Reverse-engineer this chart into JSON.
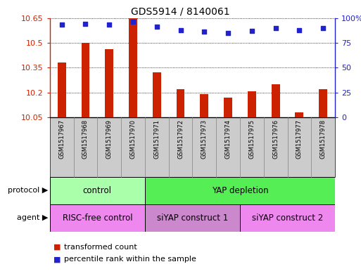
{
  "title": "GDS5914 / 8140061",
  "samples": [
    "GSM1517967",
    "GSM1517968",
    "GSM1517969",
    "GSM1517970",
    "GSM1517971",
    "GSM1517972",
    "GSM1517973",
    "GSM1517974",
    "GSM1517975",
    "GSM1517976",
    "GSM1517977",
    "GSM1517978"
  ],
  "transformed_counts": [
    10.38,
    10.5,
    10.46,
    10.65,
    10.32,
    10.22,
    10.19,
    10.17,
    10.205,
    10.25,
    10.08,
    10.22
  ],
  "percentile_ranks": [
    93,
    94,
    93,
    96,
    91,
    88,
    86,
    85,
    87,
    90,
    88,
    90
  ],
  "ymin": 10.05,
  "ymax": 10.65,
  "yticks": [
    10.05,
    10.2,
    10.35,
    10.5,
    10.65
  ],
  "yticklabels": [
    "10.05",
    "10.2",
    "10.35",
    "10.5",
    "10.65"
  ],
  "bar_color": "#cc2200",
  "dot_color": "#2222cc",
  "protocol_groups": [
    {
      "label": "control",
      "start": 0,
      "end": 3,
      "color": "#aaffaa"
    },
    {
      "label": "YAP depletion",
      "start": 4,
      "end": 11,
      "color": "#55ee55"
    }
  ],
  "agent_groups": [
    {
      "label": "RISC-free control",
      "start": 0,
      "end": 3,
      "color": "#ee88ee"
    },
    {
      "label": "siYAP construct 1",
      "start": 4,
      "end": 7,
      "color": "#cc88cc"
    },
    {
      "label": "siYAP construct 2",
      "start": 8,
      "end": 11,
      "color": "#ee88ee"
    }
  ],
  "legend_items": [
    {
      "label": "transformed count",
      "color": "#cc2200"
    },
    {
      "label": "percentile rank within the sample",
      "color": "#2222cc"
    }
  ],
  "right_yticks": [
    0,
    25,
    50,
    75,
    100
  ],
  "right_yticklabels": [
    "0",
    "25",
    "50",
    "75",
    "100%"
  ],
  "xtick_bg_color": "#cccccc",
  "protocol_label": "protocol",
  "agent_label": "agent"
}
